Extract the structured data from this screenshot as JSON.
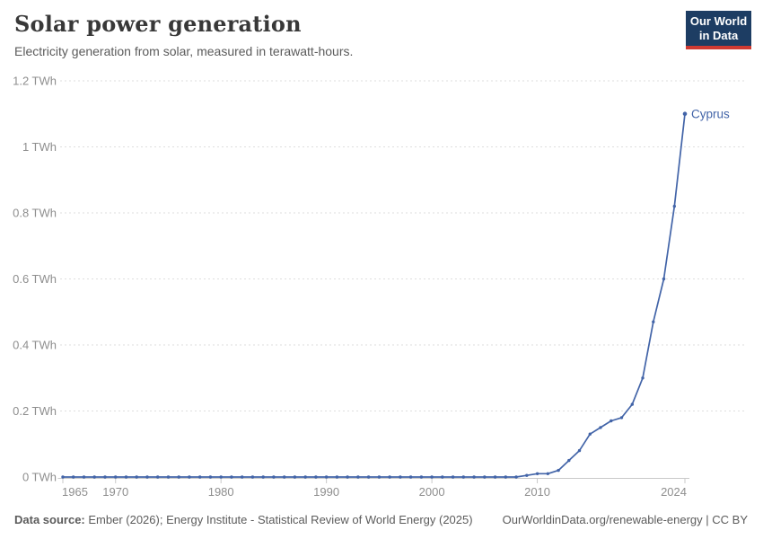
{
  "header": {
    "title": "Solar power generation",
    "subtitle": "Electricity generation from solar, measured in terawatt-hours."
  },
  "logo": {
    "line1": "Our World",
    "line2": "in Data"
  },
  "footer": {
    "source_label": "Data source:",
    "source_text": " Ember (2026); Energy Institute - Statistical Review of World Energy (2025)",
    "right_text": "OurWorldinData.org/renewable-energy | CC BY"
  },
  "colors": {
    "line": "#4264a8",
    "entity_label": "#4264a8",
    "gridline": "#dedede",
    "axis": "#c9c9c9",
    "tick_label": "#8e8e8e",
    "logo_bg": "#1d3d63",
    "logo_red": "#cf3a32",
    "title_text": "#383838",
    "subtitle_text": "#5b5b5b"
  },
  "chart_data": {
    "type": "line",
    "title": "Solar power generation",
    "xlabel": "",
    "ylabel": "terawatt-hours",
    "unit": "TWh",
    "grid": "horizontal-dashed",
    "legend_position": "end-of-line-label",
    "xlim": [
      1965,
      2024
    ],
    "ylim": [
      0,
      1.2
    ],
    "xticks": [
      1965,
      1970,
      1980,
      1990,
      2000,
      2010,
      2024
    ],
    "yticks": [
      {
        "value": 0,
        "label": "0 TWh"
      },
      {
        "value": 0.2,
        "label": "0.2 TWh"
      },
      {
        "value": 0.4,
        "label": "0.4 TWh"
      },
      {
        "value": 0.6,
        "label": "0.6 TWh"
      },
      {
        "value": 0.8,
        "label": "0.8 TWh"
      },
      {
        "value": 1,
        "label": "1 TWh"
      },
      {
        "value": 1.2,
        "label": "1.2 TWh"
      }
    ],
    "x": [
      1965,
      1966,
      1967,
      1968,
      1969,
      1970,
      1971,
      1972,
      1973,
      1974,
      1975,
      1976,
      1977,
      1978,
      1979,
      1980,
      1981,
      1982,
      1983,
      1984,
      1985,
      1986,
      1987,
      1988,
      1989,
      1990,
      1991,
      1992,
      1993,
      1994,
      1995,
      1996,
      1997,
      1998,
      1999,
      2000,
      2001,
      2002,
      2003,
      2004,
      2005,
      2006,
      2007,
      2008,
      2009,
      2010,
      2011,
      2012,
      2013,
      2014,
      2015,
      2016,
      2017,
      2018,
      2019,
      2020,
      2021,
      2022,
      2023,
      2024
    ],
    "series": [
      {
        "name": "Cyprus",
        "color": "#4264a8",
        "values": [
          0,
          0,
          0,
          0,
          0,
          0,
          0,
          0,
          0,
          0,
          0,
          0,
          0,
          0,
          0,
          0,
          0,
          0,
          0,
          0,
          0,
          0,
          0,
          0,
          0,
          0,
          0,
          0,
          0,
          0,
          0,
          0,
          0,
          0,
          0,
          0,
          0,
          0,
          0,
          0,
          0,
          0,
          0,
          0,
          0.005,
          0.01,
          0.01,
          0.02,
          0.05,
          0.08,
          0.13,
          0.15,
          0.17,
          0.18,
          0.22,
          0.3,
          0.47,
          0.6,
          0.82,
          1.1
        ]
      }
    ]
  }
}
